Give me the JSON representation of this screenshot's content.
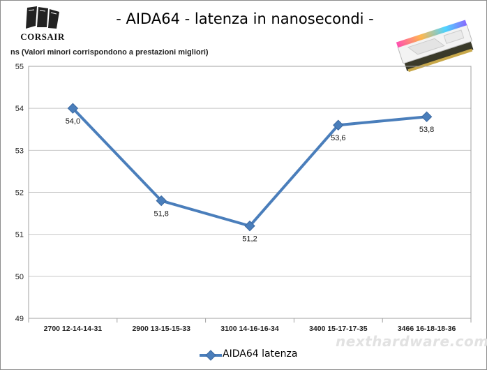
{
  "header": {
    "title": "- AIDA64 - latenza in nanosecondi -",
    "ylabel": "ns  (Valori minori corrispondono a prestazioni  migliori)",
    "brand": "CORSAIR",
    "watermark": "nexthardware.com"
  },
  "chart_data": {
    "type": "line",
    "title": "- AIDA64 - latenza in nanosecondi -",
    "ylabel": "ns  (Valori minori corrispondono a prestazioni  migliori)",
    "xlabel": "",
    "categories": [
      "2700 12-14-14-31",
      "2900 13-15-15-33",
      "3100 14-16-16-34",
      "3400 15-17-17-35",
      "3466 16-18-18-36"
    ],
    "series": [
      {
        "name": "AIDA64 latenza",
        "values": [
          54.0,
          51.8,
          51.2,
          53.6,
          53.8
        ],
        "labels": [
          "54,0",
          "51,8",
          "51,2",
          "53,6",
          "53,8"
        ],
        "color": "#4a7ebb",
        "marker": "diamond"
      }
    ],
    "ylim": [
      49,
      55
    ],
    "yticks": [
      49,
      50,
      51,
      52,
      53,
      54,
      55
    ],
    "grid": true,
    "legend": "bottom"
  }
}
